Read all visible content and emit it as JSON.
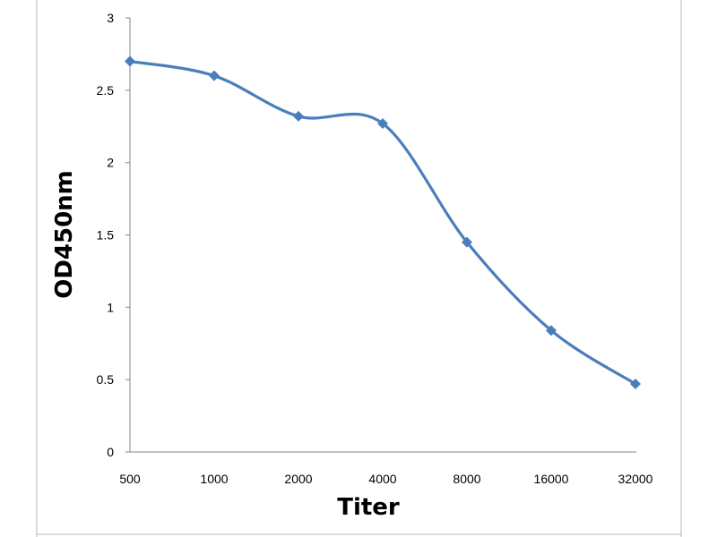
{
  "chart_data": {
    "type": "line",
    "title": "",
    "xlabel": "Titer",
    "ylabel": "OD450nm",
    "categories": [
      "500",
      "1000",
      "2000",
      "4000",
      "8000",
      "16000",
      "32000"
    ],
    "series": [
      {
        "values": [
          2.7,
          2.6,
          2.32,
          2.27,
          1.45,
          0.84,
          0.47
        ]
      }
    ],
    "ylim": [
      0,
      3
    ],
    "yticks": [
      "0",
      "0.5",
      "1",
      "1.5",
      "2",
      "2.5",
      "3"
    ],
    "grid": false,
    "legend": "none",
    "smooth": true,
    "marker": "diamond",
    "line_color": "#4a7ebb"
  }
}
